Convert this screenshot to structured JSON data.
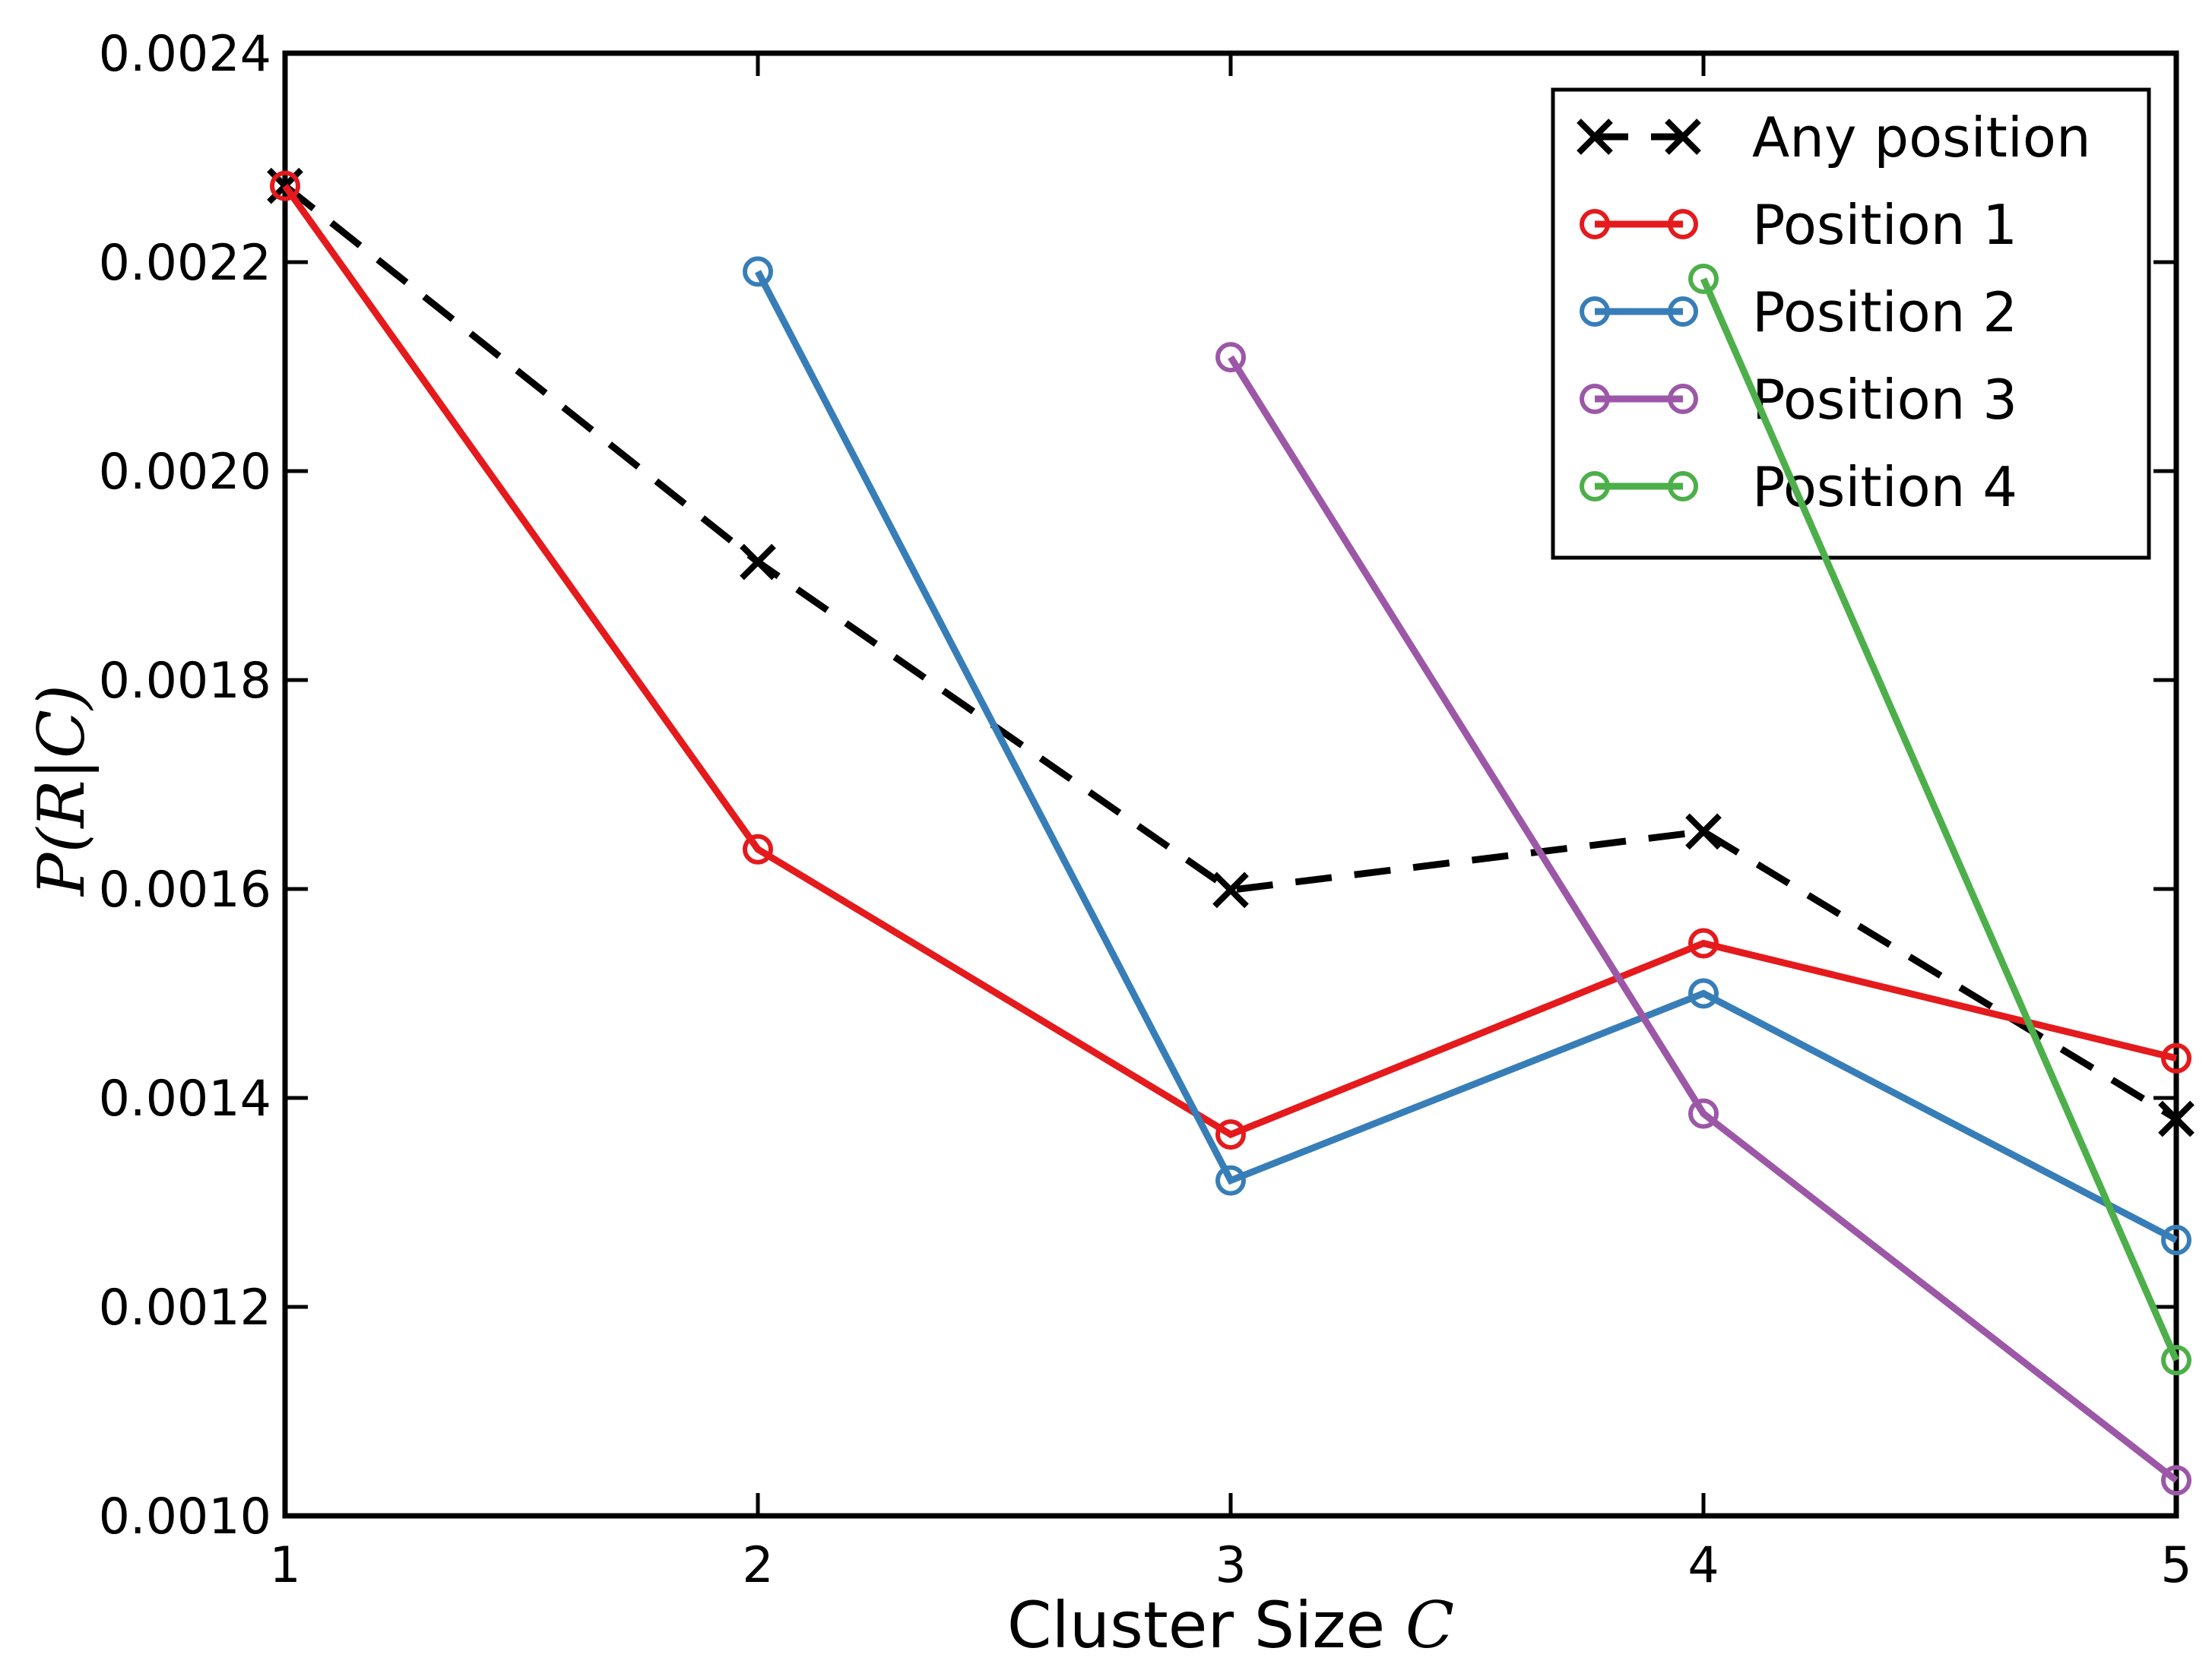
{
  "figure": {
    "background": "#ffffff",
    "frame_color": "#000000"
  },
  "labels": {
    "xlabel_text": "Cluster Size ",
    "xlabel_math": "C",
    "ylabel_math": "P(R|C)"
  },
  "chart_data": {
    "type": "line",
    "title": "",
    "xlabel": "Cluster Size C",
    "ylabel": "P(R|C)",
    "xlim": [
      1,
      5
    ],
    "ylim": [
      0.001,
      0.0024
    ],
    "grid": false,
    "legend_position": "upper right",
    "xticks": [
      1,
      2,
      3,
      4,
      5
    ],
    "xtick_labels": [
      "1",
      "2",
      "3",
      "4",
      "5"
    ],
    "yticks": [
      0.001,
      0.0012,
      0.0014,
      0.0016,
      0.0018,
      0.002,
      0.0022,
      0.0024
    ],
    "ytick_labels": [
      "0.0010",
      "0.0012",
      "0.0014",
      "0.0016",
      "0.0018",
      "0.0020",
      "0.0022",
      "0.0024"
    ],
    "series": [
      {
        "name": "Any position",
        "color": "#000000",
        "linestyle": "dashed",
        "marker": "x",
        "x": [
          1,
          2,
          3,
          4,
          5
        ],
        "values": [
          0.002273,
          0.001913,
          0.001599,
          0.001655,
          0.00138
        ]
      },
      {
        "name": "Position 1",
        "color": "#e41a1c",
        "linestyle": "solid",
        "marker": "circle",
        "x": [
          1,
          2,
          3,
          4,
          5
        ],
        "values": [
          0.002273,
          0.001638,
          0.001365,
          0.001548,
          0.001438
        ]
      },
      {
        "name": "Position 2",
        "color": "#377eb8",
        "linestyle": "solid",
        "marker": "circle",
        "x": [
          2,
          3,
          4,
          5
        ],
        "values": [
          0.002191,
          0.001321,
          0.0015,
          0.001264
        ]
      },
      {
        "name": "Position 3",
        "color": "#9c57a7",
        "linestyle": "solid",
        "marker": "circle",
        "x": [
          3,
          4,
          5
        ],
        "values": [
          0.002109,
          0.001385,
          0.001034
        ]
      },
      {
        "name": "Position 4",
        "color": "#4daf4a",
        "linestyle": "solid",
        "marker": "circle",
        "x": [
          4,
          5
        ],
        "values": [
          0.002184,
          0.001149
        ]
      }
    ]
  }
}
